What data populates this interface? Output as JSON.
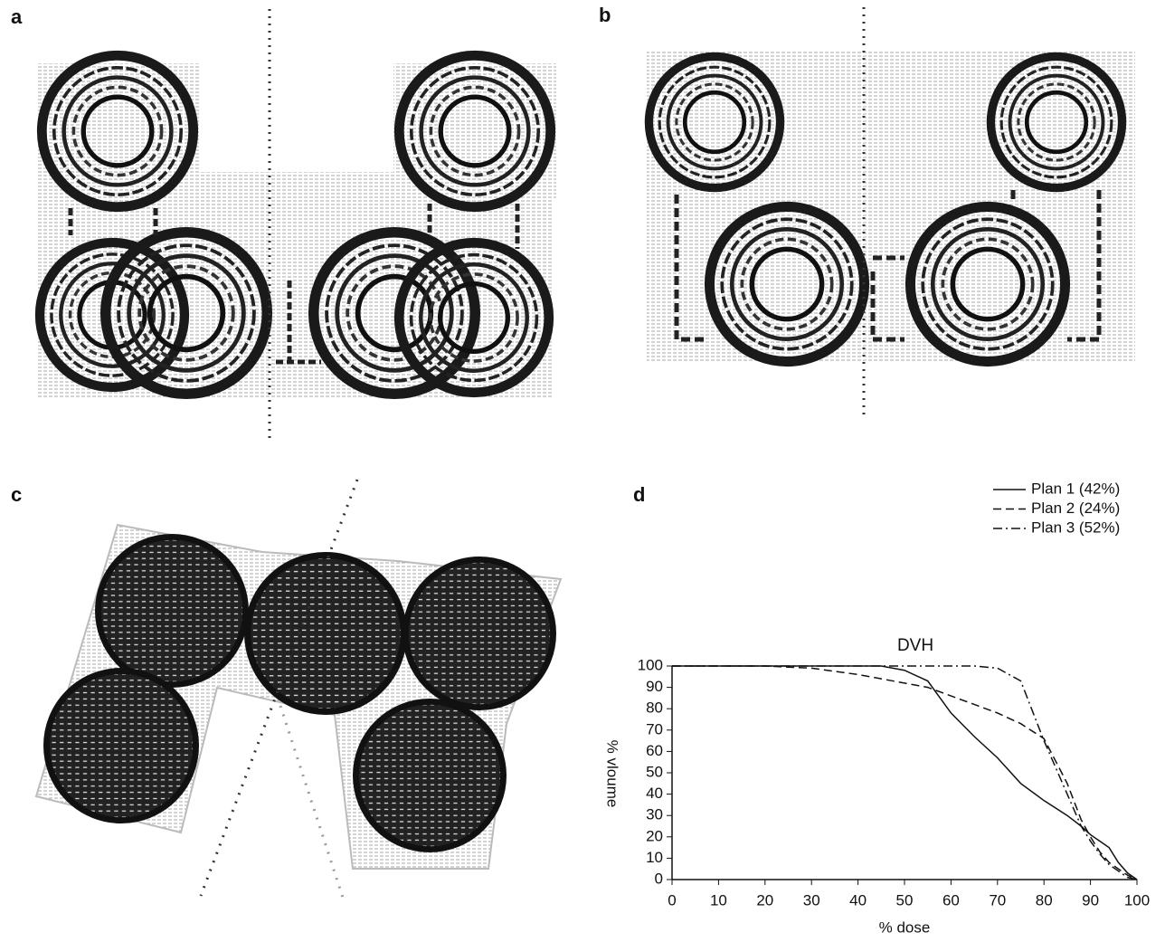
{
  "panel_labels": [
    "a",
    "b",
    "c",
    "d"
  ],
  "chart_data": {
    "type": "line",
    "title": "DVH",
    "x_label": "% dose",
    "y_label": "% vloume",
    "x": [
      0,
      10,
      20,
      30,
      40,
      45,
      50,
      55,
      60,
      65,
      70,
      75,
      80,
      85,
      88,
      90,
      92,
      94,
      96,
      98,
      100
    ],
    "series": [
      {
        "name": "Plan 1 (42%)",
        "color": "#111111",
        "dash": "none",
        "values": [
          100,
          100,
          100,
          100,
          100,
          100,
          98,
          93,
          78,
          67,
          57,
          45,
          37,
          30,
          25,
          21,
          18,
          15,
          8,
          3,
          0
        ]
      },
      {
        "name": "Plan 2 (24%)",
        "color": "#111111",
        "dash": "9 5",
        "values": [
          100,
          100,
          100,
          99,
          96,
          94,
          92,
          90,
          86,
          82,
          78,
          73,
          66,
          45,
          28,
          20,
          13,
          8,
          5,
          2,
          0
        ]
      },
      {
        "name": "Plan 3 (52%)",
        "color": "#111111",
        "dash": "10 4 2 4",
        "values": [
          100,
          100,
          100,
          100,
          100,
          100,
          100,
          100,
          100,
          100,
          99,
          93,
          65,
          40,
          25,
          18,
          12,
          7,
          4,
          1,
          0
        ]
      }
    ],
    "xlim": [
      0,
      100
    ],
    "ylim": [
      0,
      100
    ],
    "xticks": [
      0,
      10,
      20,
      30,
      40,
      50,
      60,
      70,
      80,
      90,
      100
    ],
    "yticks": [
      0,
      10,
      20,
      30,
      40,
      50,
      60,
      70,
      80,
      90,
      100
    ],
    "grid": false,
    "legend": "upper right"
  }
}
